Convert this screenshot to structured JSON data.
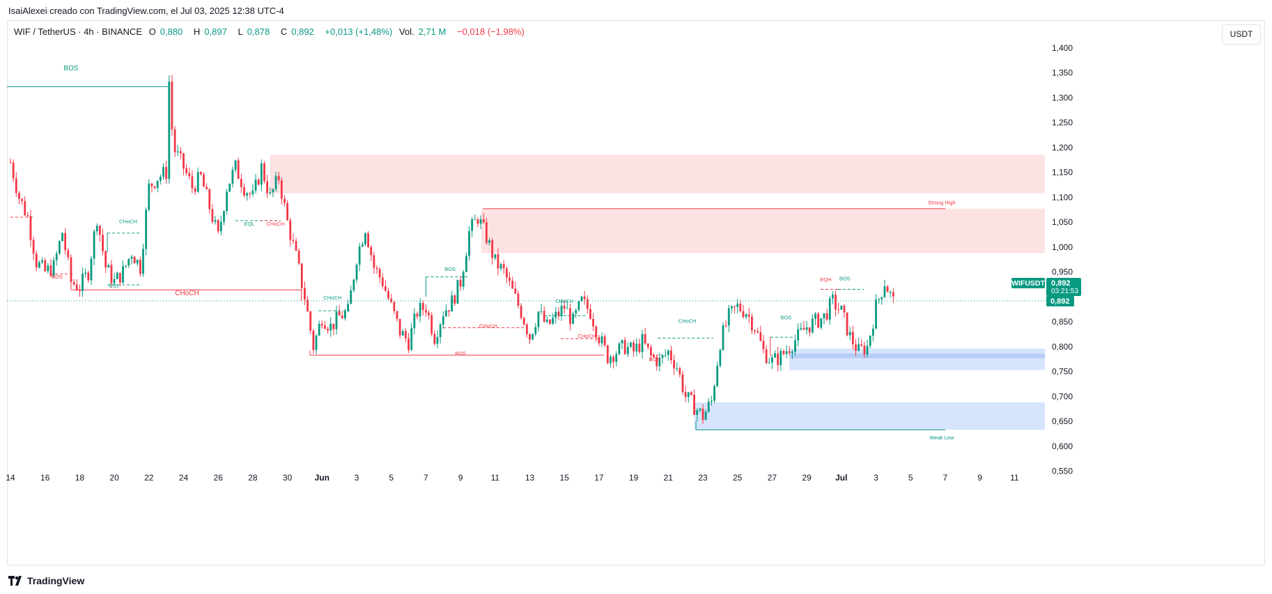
{
  "credit": "IsaiAlexei creado con TradingView.com, el Jul 03, 2025 12:38 UTC-4",
  "legend": {
    "symbol": "WIF / TetherUS · 4h · BINANCE",
    "o_label": "O",
    "o_value": "0,880",
    "h_label": "H",
    "h_value": "0,897",
    "l_label": "L",
    "l_value": "0,878",
    "c_label": "C",
    "c_value": "0,892",
    "change": "+0,013 (+1,48%)",
    "vol_label": "Vol.",
    "vol_value": "2,71 M",
    "vol_change": "−0,018 (−1,98%)"
  },
  "currency_button": "USDT",
  "footer": "TradingView",
  "colors": {
    "up": "#089981",
    "down": "#f23645",
    "supply_zone": "#fde2e3",
    "demand_zone": "#d6e4fc",
    "demand_band": "#b5cdf7"
  },
  "chart_data": {
    "type": "candlestick",
    "symbol": "WIFUSDT",
    "timeframe": "4h",
    "ylim": [
      0.52,
      1.45
    ],
    "y_ticks": [
      "1,400",
      "1,350",
      "1,300",
      "1,250",
      "1,200",
      "1,150",
      "1,100",
      "1,050",
      "1,000",
      "0,950",
      "0,900",
      "0,850",
      "0,800",
      "0,750",
      "0,700",
      "0,650",
      "0,600",
      "0,550"
    ],
    "y_tick_values": [
      1.4,
      1.35,
      1.3,
      1.25,
      1.2,
      1.15,
      1.1,
      1.05,
      1.0,
      0.95,
      0.9,
      0.85,
      0.8,
      0.75,
      0.7,
      0.65,
      0.6,
      0.55
    ],
    "x_ticks": [
      "14",
      "16",
      "18",
      "20",
      "22",
      "24",
      "26",
      "28",
      "30",
      "Jun",
      "3",
      "5",
      "7",
      "9",
      "11",
      "13",
      "15",
      "17",
      "19",
      "21",
      "23",
      "25",
      "27",
      "29",
      "Jul",
      "3",
      "5",
      "7",
      "9",
      "11"
    ],
    "x_tick_days": [
      0,
      2,
      4,
      6,
      8,
      10,
      12,
      14,
      16,
      18,
      20,
      22,
      24,
      26,
      28,
      30,
      32,
      34,
      36,
      38,
      40,
      42,
      44,
      46,
      48,
      50,
      52,
      54,
      56,
      58
    ],
    "price_label": {
      "symbol": "WIFUSDT",
      "price": "0,892",
      "countdown": "03:21:53",
      "axis_price": "0,892",
      "value": 0.892
    },
    "price_path": [
      [
        0,
        1.17
      ],
      [
        0.5,
        1.1
      ],
      [
        1,
        1.06
      ],
      [
        1.5,
        0.97
      ],
      [
        2,
        0.95
      ],
      [
        2.5,
        0.96
      ],
      [
        3,
        1.03
      ],
      [
        3.5,
        0.93
      ],
      [
        4,
        0.92
      ],
      [
        4.5,
        0.95
      ],
      [
        5,
        1.06
      ],
      [
        5.5,
        0.96
      ],
      [
        6,
        0.93
      ],
      [
        6.5,
        0.95
      ],
      [
        7,
        0.99
      ],
      [
        7.5,
        0.96
      ],
      [
        8,
        1.12
      ],
      [
        8.5,
        1.14
      ],
      [
        9,
        1.15
      ],
      [
        9.1,
        1.37
      ],
      [
        9.4,
        1.2
      ],
      [
        10,
        1.16
      ],
      [
        10.5,
        1.12
      ],
      [
        11,
        1.14
      ],
      [
        11.5,
        1.08
      ],
      [
        12,
        1.02
      ],
      [
        12.5,
        1.12
      ],
      [
        13,
        1.16
      ],
      [
        13.5,
        1.12
      ],
      [
        14,
        1.1
      ],
      [
        14.5,
        1.16
      ],
      [
        15,
        1.1
      ],
      [
        15.5,
        1.14
      ],
      [
        16,
        1.05
      ],
      [
        16.5,
        0.98
      ],
      [
        17,
        0.9
      ],
      [
        17.5,
        0.8
      ],
      [
        18,
        0.86
      ],
      [
        18.5,
        0.84
      ],
      [
        19,
        0.86
      ],
      [
        19.5,
        0.87
      ],
      [
        20,
        0.98
      ],
      [
        20.5,
        1.04
      ],
      [
        21,
        0.96
      ],
      [
        21.5,
        0.93
      ],
      [
        22,
        0.88
      ],
      [
        22.5,
        0.83
      ],
      [
        23,
        0.81
      ],
      [
        23.5,
        0.87
      ],
      [
        24,
        0.88
      ],
      [
        24.5,
        0.82
      ],
      [
        25,
        0.87
      ],
      [
        25.5,
        0.89
      ],
      [
        26,
        0.93
      ],
      [
        26.5,
        1.03
      ],
      [
        27,
        1.06
      ],
      [
        27.5,
        1.02
      ],
      [
        28,
        0.97
      ],
      [
        28.5,
        0.95
      ],
      [
        29,
        0.91
      ],
      [
        29.5,
        0.87
      ],
      [
        30,
        0.82
      ],
      [
        30.5,
        0.87
      ],
      [
        31,
        0.84
      ],
      [
        31.5,
        0.86
      ],
      [
        32,
        0.88
      ],
      [
        32.5,
        0.85
      ],
      [
        33,
        0.89
      ],
      [
        33.5,
        0.87
      ],
      [
        34,
        0.82
      ],
      [
        34.5,
        0.78
      ],
      [
        35,
        0.79
      ],
      [
        35.5,
        0.8
      ],
      [
        36,
        0.79
      ],
      [
        36.5,
        0.81
      ],
      [
        37,
        0.78
      ],
      [
        37.5,
        0.77
      ],
      [
        38,
        0.79
      ],
      [
        38.5,
        0.76
      ],
      [
        39,
        0.7
      ],
      [
        39.5,
        0.68
      ],
      [
        40,
        0.66
      ],
      [
        40.5,
        0.69
      ],
      [
        41,
        0.81
      ],
      [
        41.5,
        0.86
      ],
      [
        42,
        0.88
      ],
      [
        42.5,
        0.87
      ],
      [
        43,
        0.84
      ],
      [
        43.5,
        0.79
      ],
      [
        44,
        0.77
      ],
      [
        44.5,
        0.78
      ],
      [
        45,
        0.8
      ],
      [
        45.5,
        0.82
      ],
      [
        46,
        0.84
      ],
      [
        46.5,
        0.85
      ],
      [
        47,
        0.86
      ],
      [
        47.5,
        0.89
      ],
      [
        48,
        0.87
      ],
      [
        48.5,
        0.82
      ],
      [
        49,
        0.79
      ],
      [
        49.5,
        0.8
      ],
      [
        50,
        0.88
      ],
      [
        50.5,
        0.93
      ],
      [
        51,
        0.89
      ]
    ],
    "annotations": [
      {
        "text": "BOS",
        "color": "#089981",
        "x": 3.5,
        "y": 1.355
      },
      {
        "text": "BOS",
        "color": "#f23645",
        "x": 2.7,
        "y": 0.937
      },
      {
        "text": "EQL",
        "color": "#089981",
        "x": 6.0,
        "y": 0.919
      },
      {
        "text": "CHoCH",
        "color": "#089981",
        "x": 6.8,
        "y": 1.048
      },
      {
        "text": "CHoCH",
        "color": "#f23645",
        "x": 10.2,
        "y": 0.903
      },
      {
        "text": "EQL",
        "color": "#089981",
        "x": 13.8,
        "y": 1.043
      },
      {
        "text": "CHoCH",
        "color": "#f23645",
        "x": 15.3,
        "y": 1.043
      },
      {
        "text": "CHoCH",
        "color": "#089981",
        "x": 18.6,
        "y": 0.895
      },
      {
        "text": "BOS",
        "color": "#089981",
        "x": 25.4,
        "y": 0.952
      },
      {
        "text": "CHoCH",
        "color": "#f23645",
        "x": 27.6,
        "y": 0.838
      },
      {
        "text": "BOS",
        "color": "#f23645",
        "x": 26.0,
        "y": 0.783
      },
      {
        "text": "CHoCH",
        "color": "#089981",
        "x": 32.0,
        "y": 0.888
      },
      {
        "text": "CHoCH",
        "color": "#f23645",
        "x": 33.3,
        "y": 0.818
      },
      {
        "text": "BOS",
        "color": "#f23645",
        "x": 37.2,
        "y": 0.771
      },
      {
        "text": "CHoCH",
        "color": "#089981",
        "x": 39.1,
        "y": 0.848
      },
      {
        "text": "BOS",
        "color": "#089981",
        "x": 44.8,
        "y": 0.855
      },
      {
        "text": "EQH",
        "color": "#f23645",
        "x": 47.1,
        "y": 0.931
      },
      {
        "text": "BOS",
        "color": "#089981",
        "x": 48.2,
        "y": 0.933
      },
      {
        "text": "Strong High",
        "color": "#f23645",
        "x": 53.8,
        "y": 1.086
      },
      {
        "text": "Weak Low",
        "color": "#089981",
        "x": 53.8,
        "y": 0.614
      }
    ]
  }
}
